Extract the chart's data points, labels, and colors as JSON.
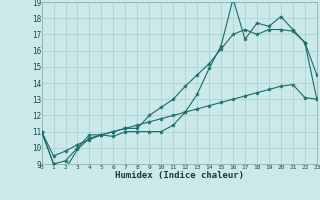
{
  "title": "",
  "xlabel": "Humidex (Indice chaleur)",
  "bg_color": "#cce9e9",
  "grid_color": "#aad4d4",
  "line_color": "#1a6b6b",
  "x_values": [
    0,
    1,
    2,
    3,
    4,
    5,
    6,
    7,
    8,
    9,
    10,
    11,
    12,
    13,
    14,
    15,
    16,
    17,
    18,
    19,
    20,
    21,
    22,
    23
  ],
  "line1": [
    11,
    9,
    8.7,
    9.9,
    10.6,
    10.8,
    10.7,
    11.0,
    11.0,
    11.0,
    11.0,
    11.4,
    12.2,
    13.3,
    14.9,
    16.3,
    19.2,
    16.7,
    17.7,
    17.5,
    18.1,
    17.3,
    16.5,
    14.5
  ],
  "line2": [
    11,
    9,
    9.2,
    10.0,
    10.8,
    10.8,
    11.0,
    11.2,
    11.2,
    12.0,
    12.5,
    13.0,
    13.8,
    14.5,
    15.2,
    16.1,
    17.0,
    17.3,
    17.0,
    17.3,
    17.3,
    17.2,
    16.5,
    13.0
  ],
  "line3": [
    11,
    9.5,
    9.8,
    10.2,
    10.5,
    10.8,
    11.0,
    11.2,
    11.4,
    11.6,
    11.8,
    12.0,
    12.2,
    12.4,
    12.6,
    12.8,
    13.0,
    13.2,
    13.4,
    13.6,
    13.8,
    13.9,
    13.1,
    13.0
  ],
  "ylim": [
    9,
    19
  ],
  "xlim": [
    0,
    23
  ],
  "yticks": [
    9,
    10,
    11,
    12,
    13,
    14,
    15,
    16,
    17,
    18,
    19
  ],
  "xticks": [
    0,
    1,
    2,
    3,
    4,
    5,
    6,
    7,
    8,
    9,
    10,
    11,
    12,
    13,
    14,
    15,
    16,
    17,
    18,
    19,
    20,
    21,
    22,
    23
  ]
}
